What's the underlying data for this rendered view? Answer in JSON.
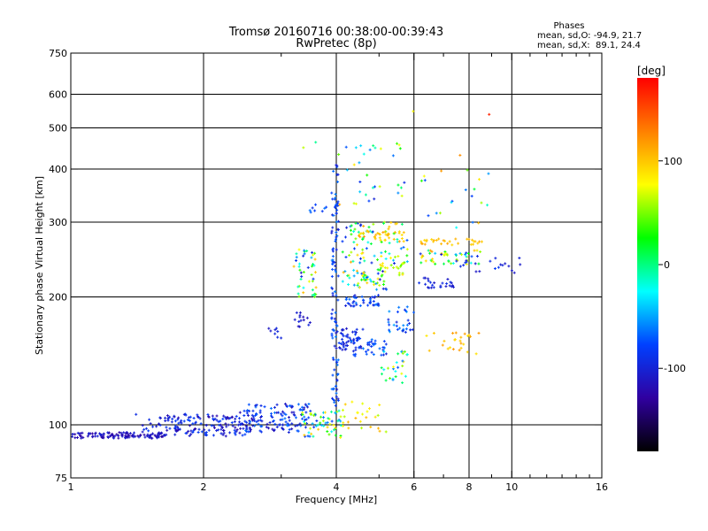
{
  "chart_data": {
    "type": "scatter",
    "title": "Tromsø 20160716 00:38:00-00:39:43",
    "subtitle": "RwPretec (8p)",
    "xlabel": "Frequency [MHz]",
    "ylabel": "Stationary phase Virtual Height [km]",
    "x_scale": "log",
    "y_scale": "log",
    "xlim": [
      1,
      16
    ],
    "ylim": [
      75,
      750
    ],
    "x_ticks": [
      1,
      2,
      4,
      6,
      8,
      10,
      16
    ],
    "y_ticks": [
      75,
      100,
      200,
      300,
      400,
      500,
      600,
      750
    ],
    "x_grid": [
      2,
      4,
      6,
      8,
      10
    ],
    "y_grid": [
      100,
      200,
      300,
      400,
      500,
      600
    ],
    "grid": true,
    "stats": {
      "header": "Phases",
      "line_o": "mean, sd,O: -94.9, 21.7",
      "line_x": "mean, sd,X:  89.1, 24.4"
    },
    "colorbar": {
      "label": "[deg]",
      "range": [
        -180,
        180
      ],
      "ticks": [
        100,
        0,
        -100
      ],
      "colors": [
        "#ff0000",
        "#ff8000",
        "#ffff00",
        "#00ff00",
        "#00ffff",
        "#0040ff",
        "#3000a0",
        "#000000"
      ]
    },
    "clusters": [
      {
        "f": [
          1.0,
          1.65
        ],
        "h": [
          93,
          96
        ],
        "ph": [
          -130,
          -100
        ],
        "n": 120
      },
      {
        "f": [
          1.4,
          1.8
        ],
        "h": [
          96,
          106
        ],
        "ph": [
          -110,
          -80
        ],
        "n": 25
      },
      {
        "f": [
          1.65,
          2.6
        ],
        "h": [
          94,
          106
        ],
        "ph": [
          -125,
          -75
        ],
        "n": 140
      },
      {
        "f": [
          2.4,
          3.5
        ],
        "h": [
          96,
          112
        ],
        "ph": [
          -120,
          -60
        ],
        "n": 130
      },
      {
        "f": [
          3.3,
          4.1
        ],
        "h": [
          93,
          108
        ],
        "ph": [
          -90,
          100
        ],
        "n": 60
      },
      {
        "f": [
          4.1,
          5.2
        ],
        "h": [
          96,
          115
        ],
        "ph": [
          60,
          110
        ],
        "n": 25
      },
      {
        "f": [
          2.8,
          3.0
        ],
        "h": [
          158,
          170
        ],
        "ph": [
          -110,
          -95
        ],
        "n": 8
      },
      {
        "f": [
          3.2,
          3.55
        ],
        "h": [
          170,
          185
        ],
        "ph": [
          -120,
          -95
        ],
        "n": 14
      },
      {
        "f": [
          3.2,
          3.6
        ],
        "h": [
          200,
          260
        ],
        "ph": [
          -110,
          110
        ],
        "n": 45
      },
      {
        "f": [
          3.3,
          3.8
        ],
        "h": [
          312,
          330
        ],
        "ph": [
          -100,
          -60
        ],
        "n": 8
      },
      {
        "f": [
          3.9,
          4.05
        ],
        "h": [
          110,
          410
        ],
        "ph": [
          -110,
          -60
        ],
        "n": 110
      },
      {
        "f": [
          4.0,
          4.6
        ],
        "h": [
          150,
          170
        ],
        "ph": [
          -110,
          -80
        ],
        "n": 45
      },
      {
        "f": [
          4.3,
          5.2
        ],
        "h": [
          145,
          160
        ],
        "ph": [
          -100,
          -60
        ],
        "n": 40
      },
      {
        "f": [
          4.2,
          5.0
        ],
        "h": [
          190,
          202
        ],
        "ph": [
          -110,
          -60
        ],
        "n": 40
      },
      {
        "f": [
          4.1,
          5.2
        ],
        "h": [
          208,
          232
        ],
        "ph": [
          -110,
          110
        ],
        "n": 55
      },
      {
        "f": [
          4.1,
          5.8
        ],
        "h": [
          240,
          300
        ],
        "ph": [
          -110,
          120
        ],
        "n": 90
      },
      {
        "f": [
          4.5,
          5.7
        ],
        "h": [
          270,
          285
        ],
        "ph": [
          90,
          120
        ],
        "n": 30
      },
      {
        "f": [
          5.0,
          5.7
        ],
        "h": [
          225,
          240
        ],
        "ph": [
          40,
          90
        ],
        "n": 20
      },
      {
        "f": [
          5.2,
          6.0
        ],
        "h": [
          165,
          190
        ],
        "ph": [
          -100,
          -50
        ],
        "n": 30
      },
      {
        "f": [
          5.0,
          5.8
        ],
        "h": [
          125,
          150
        ],
        "ph": [
          -90,
          90
        ],
        "n": 30
      },
      {
        "f": [
          4.0,
          5.8
        ],
        "h": [
          330,
          460
        ],
        "ph": [
          -100,
          120
        ],
        "n": 30
      },
      {
        "f": [
          6.1,
          7.5
        ],
        "h": [
          210,
          222
        ],
        "ph": [
          -110,
          -90
        ],
        "n": 25
      },
      {
        "f": [
          6.2,
          8.5
        ],
        "h": [
          238,
          258
        ],
        "ph": [
          -110,
          120
        ],
        "n": 50
      },
      {
        "f": [
          6.2,
          8.8
        ],
        "h": [
          265,
          275
        ],
        "ph": [
          90,
          115
        ],
        "n": 30
      },
      {
        "f": [
          6.3,
          8.5
        ],
        "h": [
          145,
          165
        ],
        "ph": [
          80,
          120
        ],
        "n": 25
      },
      {
        "f": [
          6.2,
          9.0
        ],
        "h": [
          290,
          410
        ],
        "ph": [
          -100,
          120
        ],
        "n": 20
      },
      {
        "f": [
          7.5,
          10.8
        ],
        "h": [
          228,
          248
        ],
        "ph": [
          -110,
          -80
        ],
        "n": 20
      },
      {
        "f": [
          3.2,
          9.5
        ],
        "h": [
          430,
          560
        ],
        "ph": [
          -90,
          170
        ],
        "n": 8
      }
    ]
  }
}
